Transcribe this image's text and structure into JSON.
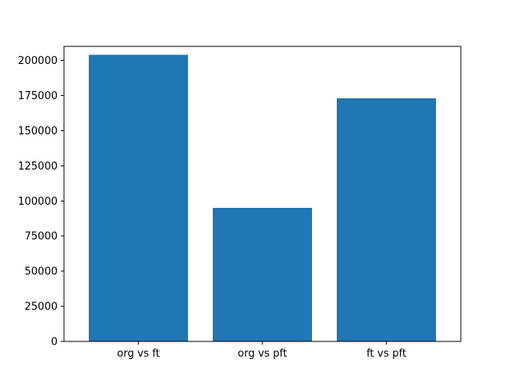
{
  "chart_data": {
    "type": "bar",
    "title": "",
    "xlabel": "",
    "ylabel": "",
    "categories": [
      "org vs ft",
      "org vs pft",
      "ft vs pft"
    ],
    "values": [
      204000,
      95000,
      173000
    ],
    "bar_color": "#1f77b4",
    "ylim": [
      0,
      210000
    ],
    "yticks": [
      0,
      25000,
      50000,
      75000,
      100000,
      125000,
      150000,
      175000,
      200000
    ],
    "grid": false,
    "legend": null
  },
  "figure": {
    "background": "#ffffff",
    "axes_edge_color": "#000000"
  }
}
